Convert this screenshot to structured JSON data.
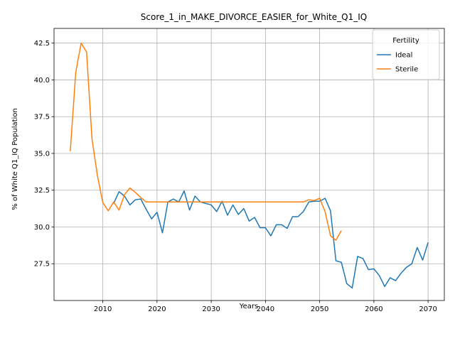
{
  "chart_data": {
    "type": "line",
    "title": "Score_1_in_MAKE_DIVORCE_EASIER_for_White_Q1_IQ",
    "xlabel": "Years",
    "ylabel": "% of White Q1_IQ Population",
    "xlim": [
      2001,
      2073
    ],
    "ylim": [
      25.0,
      43.5
    ],
    "xticks": [
      2010,
      2020,
      2030,
      2040,
      2050,
      2060,
      2070
    ],
    "yticks": [
      27.5,
      30.0,
      32.5,
      35.0,
      37.5,
      40.0,
      42.5
    ],
    "ytick_labels": [
      "27.5",
      "30.0",
      "32.5",
      "35.0",
      "37.5",
      "40.0",
      "42.5"
    ],
    "grid": true,
    "legend": {
      "title": "Fertility",
      "placement": "top-right"
    },
    "series": [
      {
        "name": "Ideal",
        "color": "#1f77b4",
        "x": [
          2012,
          2013,
          2014,
          2015,
          2016,
          2017,
          2018,
          2019,
          2020,
          2021,
          2022,
          2023,
          2024,
          2025,
          2026,
          2027,
          2028,
          2029,
          2030,
          2031,
          2032,
          2033,
          2034,
          2035,
          2036,
          2037,
          2038,
          2039,
          2040,
          2041,
          2042,
          2043,
          2044,
          2045,
          2046,
          2047,
          2048,
          2049,
          2050,
          2051,
          2052,
          2053,
          2054,
          2055,
          2056,
          2057,
          2058,
          2059,
          2060,
          2061,
          2062,
          2063,
          2064,
          2065,
          2066,
          2067,
          2068,
          2069,
          2070
        ],
        "y": [
          31.6,
          32.4,
          32.1,
          31.5,
          31.85,
          31.9,
          31.2,
          30.55,
          31.0,
          29.6,
          31.7,
          31.9,
          31.7,
          32.45,
          31.15,
          32.1,
          31.7,
          31.6,
          31.5,
          31.05,
          31.75,
          30.8,
          31.5,
          30.85,
          31.25,
          30.4,
          30.65,
          29.95,
          29.95,
          29.4,
          30.15,
          30.15,
          29.9,
          30.7,
          30.7,
          31.05,
          31.7,
          31.75,
          31.75,
          31.95,
          31.1,
          27.7,
          27.6,
          26.15,
          25.85,
          28.0,
          27.85,
          27.1,
          27.15,
          26.7,
          25.95,
          26.55,
          26.35,
          26.85,
          27.25,
          27.5,
          28.6,
          27.75,
          28.95
        ]
      },
      {
        "name": "Sterile",
        "color": "#ff7f0e",
        "x": [
          2004,
          2005,
          2006,
          2007,
          2008,
          2009,
          2010,
          2011,
          2012,
          2013,
          2014,
          2015,
          2016,
          2017,
          2018,
          2019,
          2020,
          2021,
          2022,
          2023,
          2024,
          2025,
          2026,
          2027,
          2028,
          2029,
          2030,
          2031,
          2032,
          2033,
          2034,
          2035,
          2036,
          2037,
          2038,
          2039,
          2040,
          2041,
          2042,
          2043,
          2044,
          2045,
          2046,
          2047,
          2048,
          2049,
          2050,
          2051,
          2052,
          2053,
          2054
        ],
        "y": [
          35.15,
          40.5,
          42.5,
          41.9,
          36.0,
          33.5,
          31.65,
          31.1,
          31.7,
          31.15,
          32.2,
          32.65,
          32.35,
          32.0,
          31.7,
          31.7,
          31.7,
          31.7,
          31.7,
          31.7,
          31.7,
          31.7,
          31.7,
          31.7,
          31.7,
          31.7,
          31.7,
          31.7,
          31.7,
          31.7,
          31.7,
          31.7,
          31.7,
          31.7,
          31.7,
          31.7,
          31.7,
          31.7,
          31.7,
          31.7,
          31.7,
          31.7,
          31.7,
          31.7,
          31.85,
          31.8,
          31.95,
          31.05,
          29.4,
          29.1,
          29.75
        ]
      }
    ]
  }
}
